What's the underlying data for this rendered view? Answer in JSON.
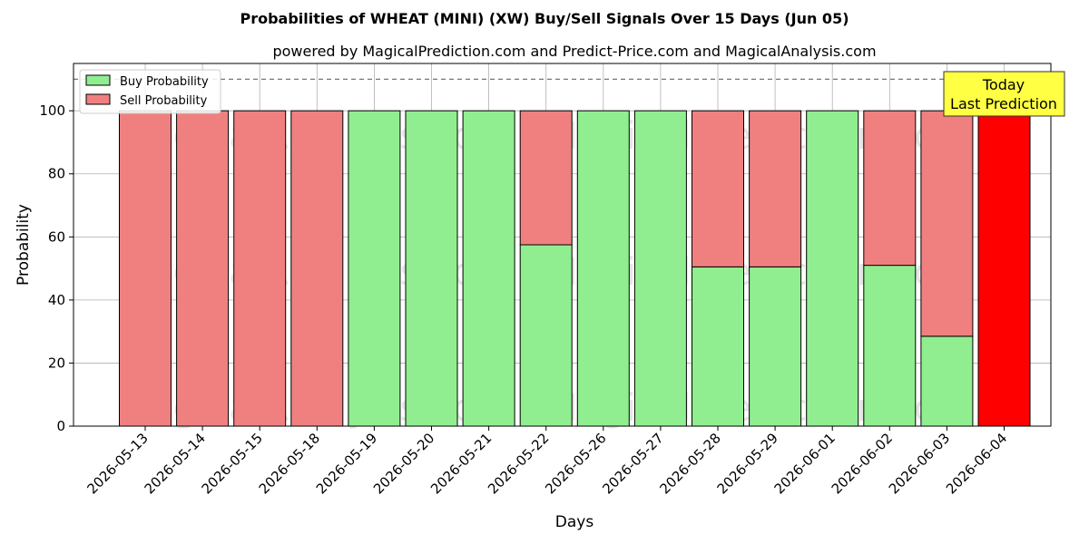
{
  "title": "Probabilities of WHEAT (MINI) (XW) Buy/Sell Signals Over 15 Days (Jun 05)",
  "subtitle": "powered by MagicalPrediction.com and Predict-Price.com and MagicalAnalysis.com",
  "watermarks": [
    "MagicalAnalysis.com",
    "MagicalPrediction.com"
  ],
  "today_box": {
    "line1": "Today",
    "line2": "Last Prediction"
  },
  "colors": {
    "buy": "#90ee90",
    "sell": "#f08080",
    "today": "#ff0000",
    "today_box": "#ffff44"
  },
  "chart_data": {
    "type": "bar",
    "stacked": true,
    "xlabel": "Days",
    "ylabel": "Probability",
    "ylim": [
      0,
      115
    ],
    "yticks": [
      0,
      20,
      40,
      60,
      80,
      100
    ],
    "reference_line": 110,
    "grid": true,
    "legend_position": "upper-left",
    "categories": [
      "2026-05-13",
      "2026-05-14",
      "2026-05-15",
      "2026-05-18",
      "2026-05-19",
      "2026-05-20",
      "2026-05-21",
      "2026-05-22",
      "2026-05-26",
      "2026-05-27",
      "2026-05-28",
      "2026-05-29",
      "2026-06-01",
      "2026-06-02",
      "2026-06-03",
      "2026-06-04"
    ],
    "series": [
      {
        "name": "Buy Probability",
        "values": [
          0,
          0,
          0,
          0,
          100,
          100,
          100,
          57.5,
          100,
          100,
          50.5,
          50.5,
          100,
          51,
          28.5,
          0
        ]
      },
      {
        "name": "Sell Probability",
        "values": [
          100,
          100,
          100,
          100,
          0,
          0,
          0,
          42.5,
          0,
          0,
          49.5,
          49.5,
          0,
          49,
          71.5,
          100
        ]
      }
    ],
    "highlight_category": "2026-06-04"
  }
}
